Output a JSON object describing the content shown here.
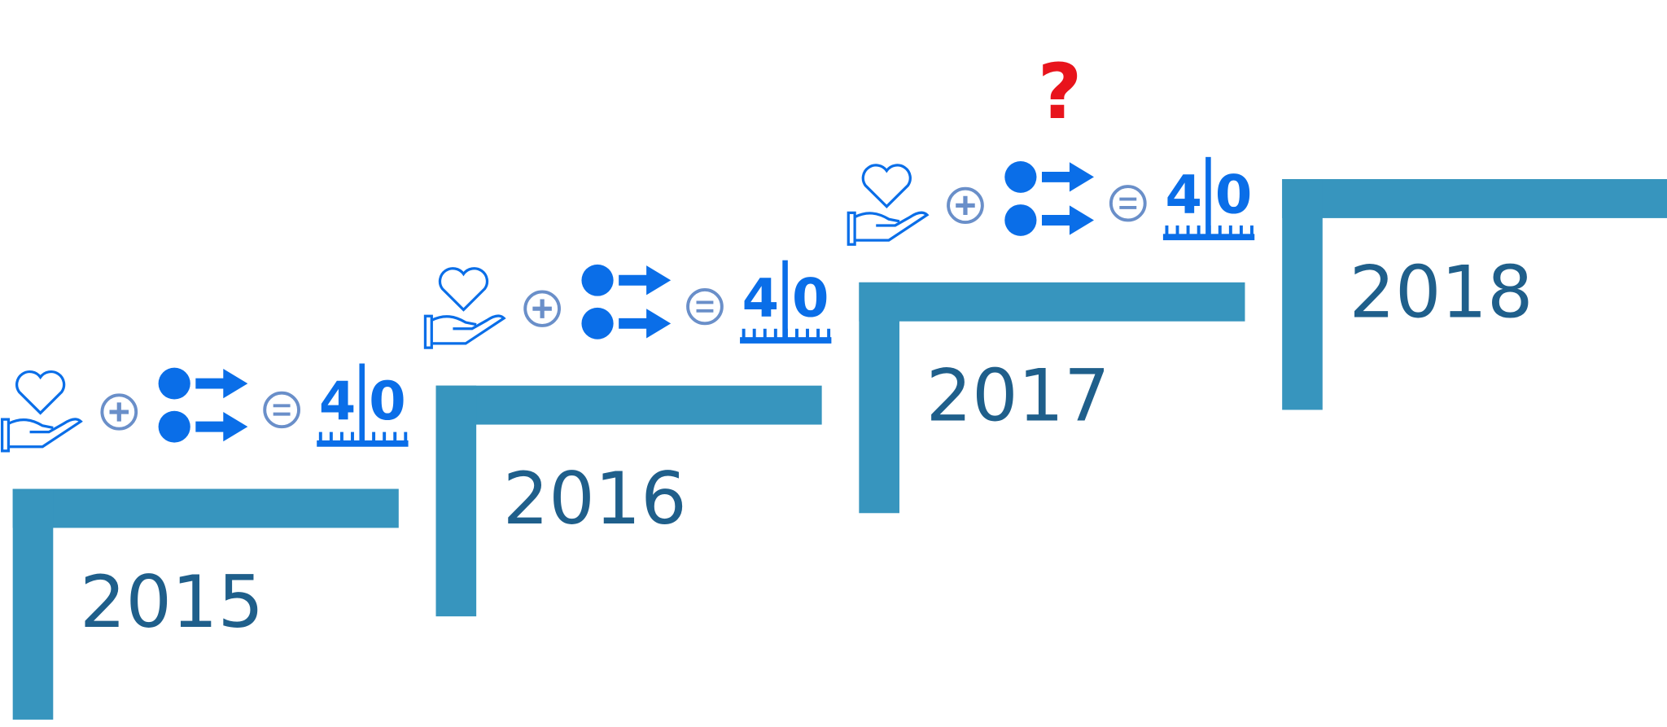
{
  "formula": {
    "left_digit": "4",
    "right_digit": "0"
  },
  "steps": [
    {
      "year": "2015"
    },
    {
      "year": "2016"
    },
    {
      "year": "2017",
      "question": "?"
    },
    {
      "year": "2018",
      "question": "?"
    }
  ]
}
